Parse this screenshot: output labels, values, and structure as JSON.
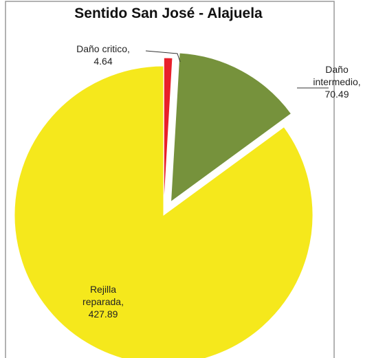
{
  "chart_data": {
    "type": "pie",
    "title": "Sentido San José - Alajuela",
    "categories": [
      "Daño critico,",
      "Daño intermedio,",
      "Rejilla reparada,"
    ],
    "values": [
      4.64,
      70.49,
      427.89
    ],
    "colors": [
      "#e8202a",
      "#76923c",
      "#f5e81c"
    ]
  }
}
